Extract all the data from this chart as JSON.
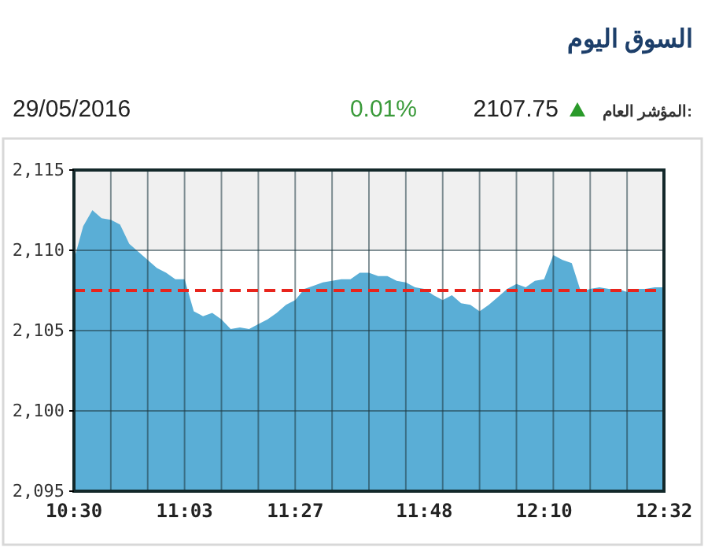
{
  "chart_data": {
    "type": "area",
    "title": "السوق اليوم",
    "annotations": [
      "29/05/2016",
      "0.01%",
      "2107.75",
      "المؤشر العام:"
    ],
    "categories": [
      "10:30",
      null,
      null,
      null,
      null,
      null,
      null,
      null,
      null,
      null,
      null,
      null,
      "11:03",
      null,
      null,
      null,
      null,
      null,
      null,
      null,
      null,
      null,
      null,
      null,
      "11:27",
      null,
      null,
      null,
      null,
      null,
      null,
      null,
      null,
      null,
      null,
      null,
      null,
      null,
      "11:48",
      null,
      null,
      null,
      null,
      null,
      null,
      null,
      null,
      null,
      null,
      null,
      null,
      "12:10",
      null,
      null,
      null,
      null,
      null,
      null,
      null,
      null,
      null,
      null,
      null,
      null,
      "12:32"
    ],
    "series": [
      {
        "color": "#5aaed6",
        "values": [
          2109.4,
          2111.5,
          2112.5,
          2112.0,
          2111.9,
          2111.6,
          2110.4,
          2109.9,
          2109.4,
          2108.9,
          2108.6,
          2108.2,
          2108.2,
          2106.2,
          2105.9,
          2106.1,
          2105.7,
          2105.1,
          2105.2,
          2105.1,
          2105.4,
          2105.7,
          2106.1,
          2106.6,
          2106.9,
          2107.6,
          2107.8,
          2108.0,
          2108.1,
          2108.2,
          2108.2,
          2108.6,
          2108.6,
          2108.4,
          2108.4,
          2108.1,
          2108.0,
          2107.7,
          2107.6,
          2107.2,
          2106.9,
          2107.2,
          2106.7,
          2106.6,
          2106.2,
          2106.6,
          2107.1,
          2107.6,
          2107.9,
          2107.7,
          2108.1,
          2108.2,
          2109.7,
          2109.4,
          2109.2,
          2107.4,
          2107.6,
          2107.7,
          2107.6,
          2107.6,
          2107.4,
          2107.6,
          2107.6,
          2107.7,
          2107.7
        ]
      }
    ],
    "ylim": [
      2095,
      2115
    ],
    "yticks": [
      {
        "value": 2095,
        "label": "2,095"
      },
      {
        "value": 2100,
        "label": "2,100"
      },
      {
        "value": 2105,
        "label": "2,105"
      },
      {
        "value": 2110,
        "label": "2,110"
      },
      {
        "value": 2115,
        "label": "2,115"
      }
    ],
    "ref_lines": [
      {
        "axis": "y",
        "value": 2107.5,
        "color": "#e8241c",
        "line_style": "dashed"
      }
    ],
    "bands": [
      {
        "axis": "y",
        "from": 2110,
        "to": 2115,
        "color": "#f0f0f0"
      }
    ],
    "grid": true
  }
}
